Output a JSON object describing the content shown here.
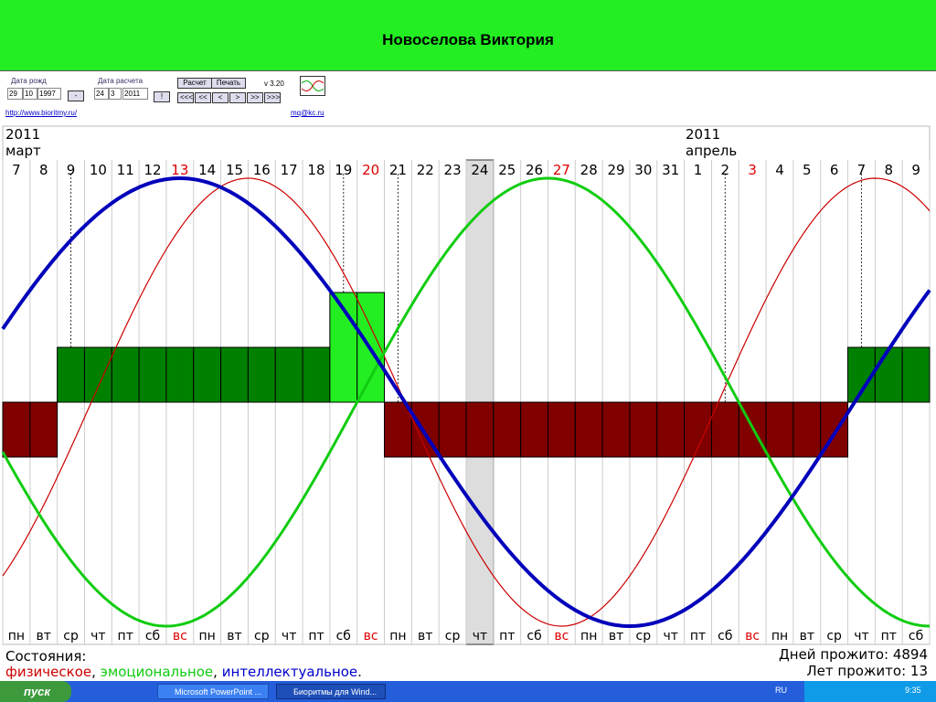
{
  "header": {
    "title": "Новоселова Виктория"
  },
  "controls": {
    "birth_label": "Дата рожд",
    "birth_day": "29",
    "birth_month": "10",
    "birth_year": "1997",
    "birth_btn": "-",
    "calc_label": "Дата расчета",
    "calc_day": "24",
    "calc_month": "3",
    "calc_year": "2011",
    "calc_btn": "!",
    "btn_calc": "Расчет",
    "btn_print": "Печать",
    "version": "v 3.20",
    "nav": [
      "<<<",
      "<<",
      "<",
      ">",
      ">>",
      ">>>"
    ],
    "link_site": "http://www.bioritmy.ru/",
    "link_mail": "mq@kc.ru"
  },
  "calendar": {
    "year_left": "2011",
    "month_left": "март",
    "year_right": "2011",
    "month_right": "апрель",
    "days": [
      "7",
      "8",
      "9",
      "10",
      "11",
      "12",
      "13",
      "14",
      "15",
      "16",
      "17",
      "18",
      "19",
      "20",
      "21",
      "22",
      "23",
      "24",
      "25",
      "26",
      "27",
      "28",
      "29",
      "30",
      "31",
      "1",
      "2",
      "3",
      "4",
      "5",
      "6",
      "7",
      "8",
      "9"
    ],
    "weekdays": [
      "пн",
      "вт",
      "ср",
      "чт",
      "пт",
      "сб",
      "вс",
      "пн",
      "вт",
      "ср",
      "чт",
      "пт",
      "сб",
      "вс",
      "пн",
      "вт",
      "ср",
      "чт",
      "пт",
      "сб",
      "вс",
      "пн",
      "вт",
      "ср",
      "чт",
      "пт",
      "сб",
      "вс",
      "пн",
      "вт",
      "ср",
      "чт",
      "пт",
      "сб"
    ]
  },
  "footer": {
    "status_label": "Состояния:",
    "legend": [
      "физическое",
      ", ",
      "эмоциональное",
      ", ",
      "интеллектуальное",
      "."
    ],
    "days_lived": "Дней прожито: 4894",
    "years_lived": "Лет прожито: 13"
  },
  "taskbar": {
    "start": "пуск",
    "tasks": [
      "Microsoft PowerPoint ...",
      "Биоритмы для Wind..."
    ],
    "lang": "RU",
    "time": "9:35"
  }
}
